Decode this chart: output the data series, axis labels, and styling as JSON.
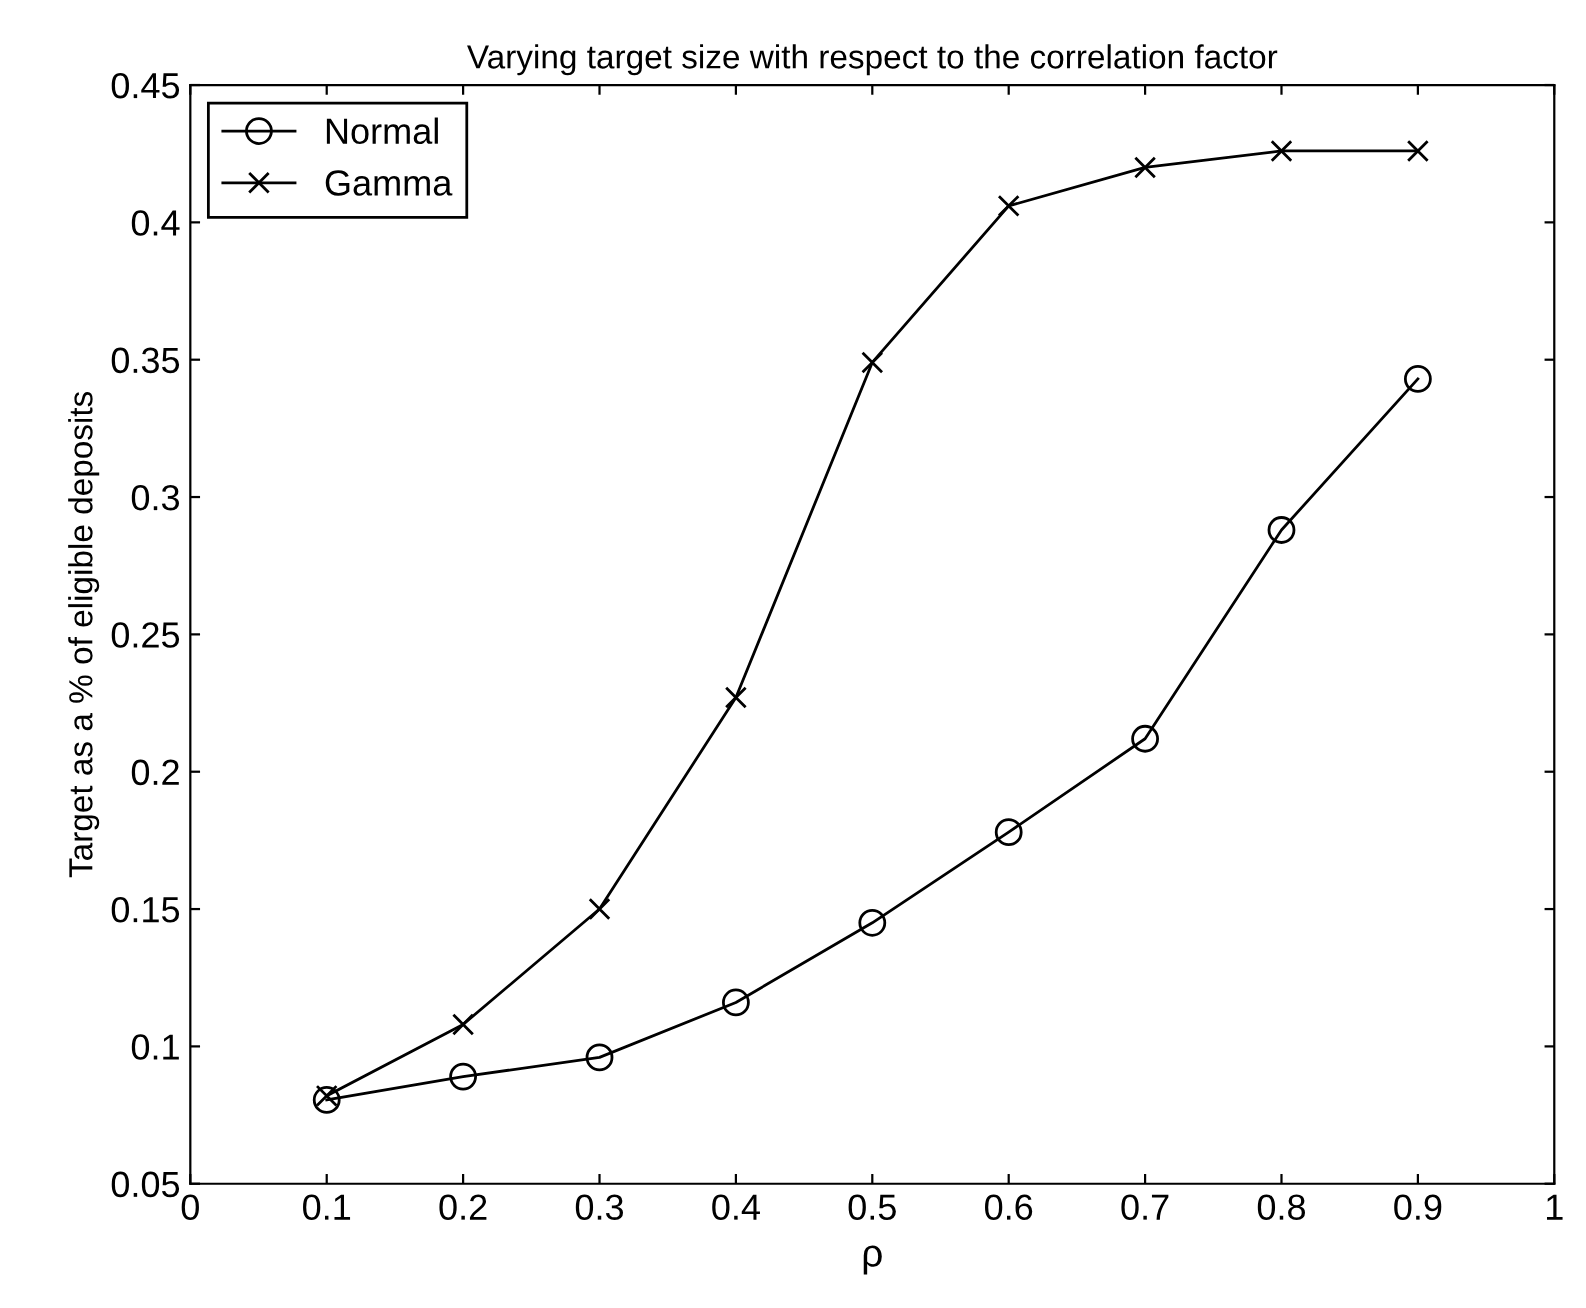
{
  "chart_data": {
    "type": "line",
    "title": "Varying target size with respect to the correlation factor",
    "xlabel": "ρ",
    "ylabel": "Target as a % of eligible deposits",
    "x": [
      0.1,
      0.2,
      0.3,
      0.4,
      0.5,
      0.6,
      0.7,
      0.8,
      0.9
    ],
    "series": [
      {
        "name": "Normal",
        "color": "#000000",
        "marker": "circle",
        "values": [
          0.0805,
          0.089,
          0.096,
          0.116,
          0.145,
          0.178,
          0.212,
          0.288,
          0.343
        ]
      },
      {
        "name": "Gamma",
        "color": "#000000",
        "marker": "cross",
        "values": [
          0.082,
          0.108,
          0.15,
          0.227,
          0.349,
          0.406,
          0.42,
          0.426,
          0.426
        ]
      }
    ],
    "xlim": [
      0,
      1
    ],
    "xticks": [
      0,
      0.1,
      0.2,
      0.3,
      0.4,
      0.5,
      0.6,
      0.7,
      0.8,
      0.9,
      1
    ],
    "ylim": [
      0.05,
      0.45
    ],
    "yticks": [
      0.05,
      0.1,
      0.15,
      0.2,
      0.25,
      0.3,
      0.35,
      0.4,
      0.45
    ],
    "grid": false,
    "legend": "top left",
    "line_style": "solid"
  }
}
